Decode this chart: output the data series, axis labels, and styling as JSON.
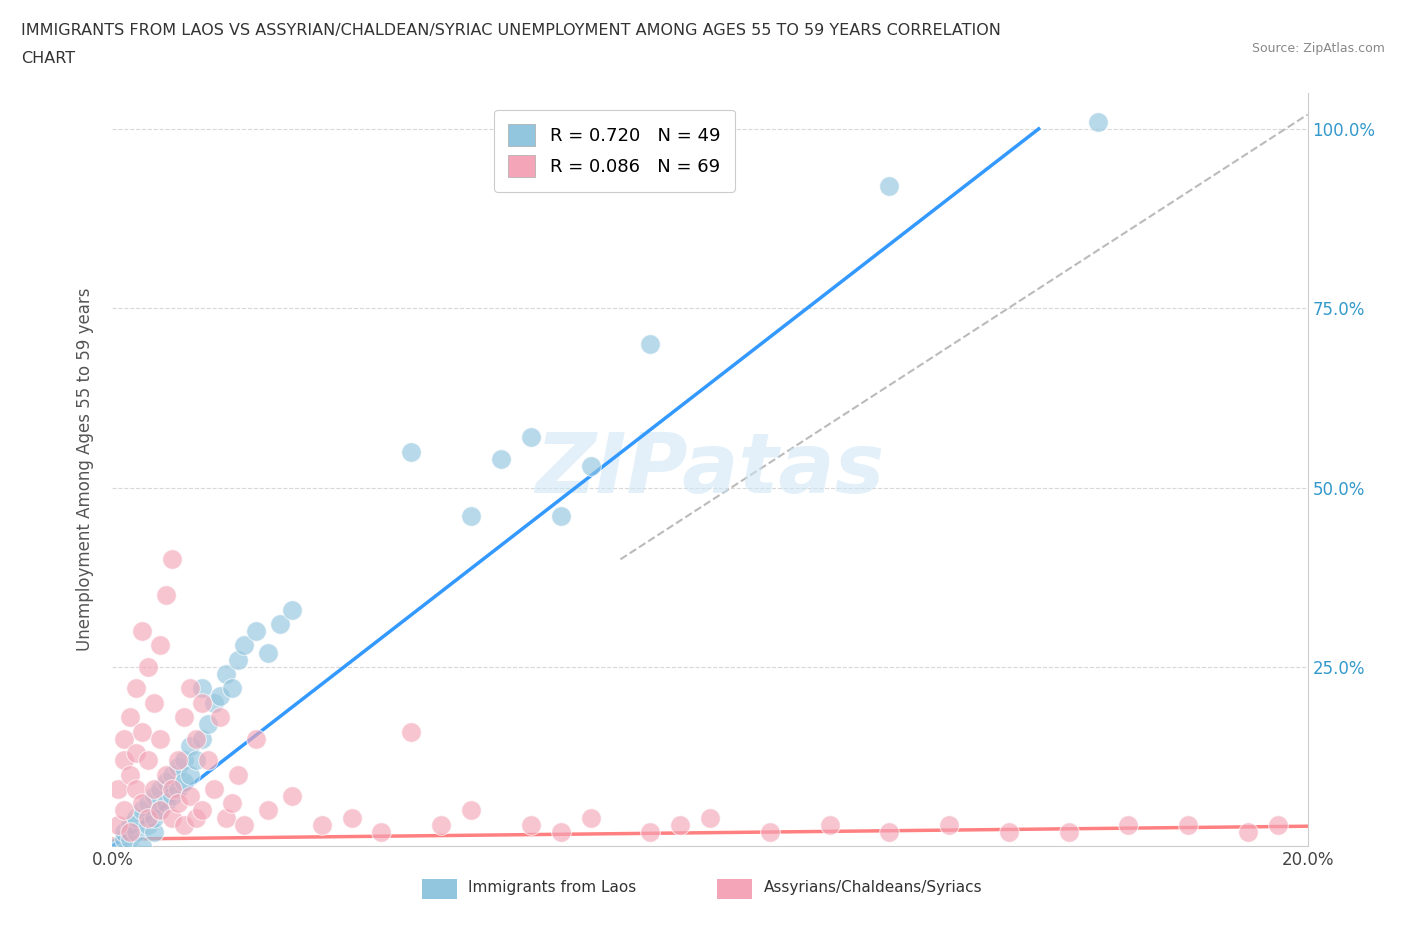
{
  "title_line1": "IMMIGRANTS FROM LAOS VS ASSYRIAN/CHALDEAN/SYRIAC UNEMPLOYMENT AMONG AGES 55 TO 59 YEARS CORRELATION",
  "title_line2": "CHART",
  "source": "Source: ZipAtlas.com",
  "ylabel": "Unemployment Among Ages 55 to 59 years",
  "xlim": [
    0.0,
    0.2
  ],
  "ylim": [
    0.0,
    1.05
  ],
  "legend_entries": [
    {
      "label": "R = 0.720   N = 49",
      "color": "#92c5de"
    },
    {
      "label": "R = 0.086   N = 69",
      "color": "#f4a6b8"
    }
  ],
  "blue_scatter_x": [
    0.001,
    0.002,
    0.002,
    0.003,
    0.003,
    0.004,
    0.004,
    0.005,
    0.005,
    0.006,
    0.006,
    0.007,
    0.007,
    0.007,
    0.008,
    0.008,
    0.009,
    0.009,
    0.01,
    0.01,
    0.011,
    0.011,
    0.012,
    0.012,
    0.013,
    0.013,
    0.014,
    0.015,
    0.015,
    0.016,
    0.017,
    0.018,
    0.019,
    0.02,
    0.021,
    0.022,
    0.024,
    0.026,
    0.028,
    0.03,
    0.05,
    0.06,
    0.065,
    0.07,
    0.075,
    0.08,
    0.09,
    0.13,
    0.165
  ],
  "blue_scatter_y": [
    0.0,
    0.01,
    0.02,
    0.01,
    0.03,
    0.02,
    0.04,
    0.0,
    0.05,
    0.03,
    0.06,
    0.02,
    0.07,
    0.04,
    0.05,
    0.08,
    0.06,
    0.09,
    0.07,
    0.1,
    0.08,
    0.11,
    0.09,
    0.12,
    0.1,
    0.14,
    0.12,
    0.15,
    0.22,
    0.17,
    0.2,
    0.21,
    0.24,
    0.22,
    0.26,
    0.28,
    0.3,
    0.27,
    0.31,
    0.33,
    0.55,
    0.46,
    0.54,
    0.57,
    0.46,
    0.53,
    0.7,
    0.92,
    1.01
  ],
  "pink_scatter_x": [
    0.001,
    0.001,
    0.002,
    0.002,
    0.002,
    0.003,
    0.003,
    0.003,
    0.004,
    0.004,
    0.004,
    0.005,
    0.005,
    0.005,
    0.006,
    0.006,
    0.006,
    0.007,
    0.007,
    0.008,
    0.008,
    0.008,
    0.009,
    0.009,
    0.01,
    0.01,
    0.01,
    0.011,
    0.011,
    0.012,
    0.012,
    0.013,
    0.013,
    0.014,
    0.014,
    0.015,
    0.015,
    0.016,
    0.017,
    0.018,
    0.019,
    0.02,
    0.021,
    0.022,
    0.024,
    0.026,
    0.03,
    0.035,
    0.04,
    0.045,
    0.05,
    0.055,
    0.06,
    0.07,
    0.075,
    0.08,
    0.09,
    0.095,
    0.1,
    0.11,
    0.12,
    0.13,
    0.14,
    0.15,
    0.16,
    0.17,
    0.18,
    0.19,
    0.195
  ],
  "pink_scatter_y": [
    0.03,
    0.08,
    0.12,
    0.05,
    0.15,
    0.1,
    0.02,
    0.18,
    0.08,
    0.13,
    0.22,
    0.06,
    0.16,
    0.3,
    0.04,
    0.12,
    0.25,
    0.08,
    0.2,
    0.15,
    0.05,
    0.28,
    0.1,
    0.35,
    0.08,
    0.04,
    0.4,
    0.12,
    0.06,
    0.18,
    0.03,
    0.22,
    0.07,
    0.15,
    0.04,
    0.2,
    0.05,
    0.12,
    0.08,
    0.18,
    0.04,
    0.06,
    0.1,
    0.03,
    0.15,
    0.05,
    0.07,
    0.03,
    0.04,
    0.02,
    0.16,
    0.03,
    0.05,
    0.03,
    0.02,
    0.04,
    0.02,
    0.03,
    0.04,
    0.02,
    0.03,
    0.02,
    0.03,
    0.02,
    0.02,
    0.03,
    0.03,
    0.02,
    0.03
  ],
  "blue_line_x": [
    0.0,
    0.155
  ],
  "blue_line_y": [
    0.0,
    1.0
  ],
  "pink_line_x": [
    0.0,
    0.2
  ],
  "pink_line_y": [
    0.01,
    0.028
  ],
  "ref_line_x": [
    0.085,
    0.2
  ],
  "ref_line_y": [
    0.4,
    1.02
  ],
  "blue_color": "#92c5de",
  "pink_color": "#f4a6b8",
  "blue_line_color": "#3399ff",
  "pink_line_color": "#ff8080",
  "ref_line_color": "#bbbbbb",
  "watermark": "ZIPatas",
  "background_color": "#ffffff",
  "grid_color": "#d8d8d8"
}
